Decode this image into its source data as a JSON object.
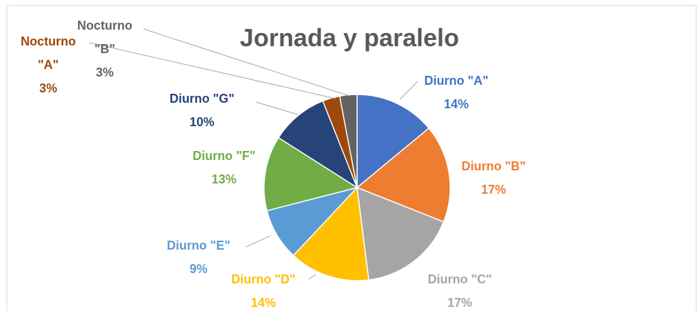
{
  "chart_data": {
    "type": "pie",
    "title": "Jornada y paralelo",
    "categories": [
      "Diurno \"A\"",
      "Diurno \"B\"",
      "Diurno \"C\"",
      "Diurno \"D\"",
      "Diurno \"E\"",
      "Diurno \"F\"",
      "Diurno \"G\"",
      "Nocturno \"A\"",
      "Nocturno \"B\""
    ],
    "values": [
      14,
      17,
      17,
      14,
      9,
      13,
      10,
      3,
      3
    ],
    "value_labels": [
      "14%",
      "17%",
      "17%",
      "14%",
      "9%",
      "13%",
      "10%",
      "3%",
      "3%"
    ],
    "colors": [
      "#4472c4",
      "#ed7d31",
      "#a5a5a5",
      "#ffc000",
      "#5b9bd5",
      "#70ad47",
      "#264478",
      "#9e480e",
      "#636363"
    ]
  }
}
